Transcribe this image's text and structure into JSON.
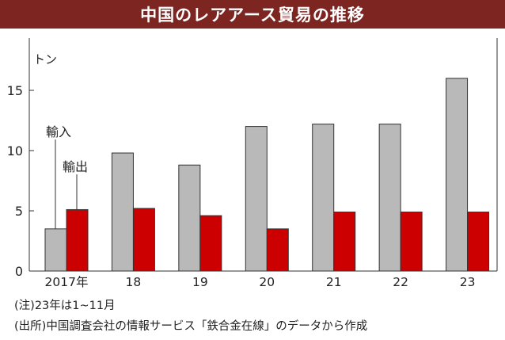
{
  "title": "中国のレアアース貿易の推移",
  "notes": [
    "(注)23年は1~11月",
    "(出所)中国調査会社の情報サービス「鉄合金在線」のデータから作成"
  ],
  "chart_data": {
    "type": "bar",
    "ylabel": "トン",
    "categories": [
      "2017年",
      "18",
      "19",
      "20",
      "21",
      "22",
      "23"
    ],
    "series": [
      {
        "name": "輸入",
        "color": "#b9b9b9",
        "values": [
          3.5,
          9.8,
          8.8,
          12.0,
          12.2,
          12.2,
          16.0
        ]
      },
      {
        "name": "輸出",
        "color": "#cc0000",
        "values": [
          5.1,
          5.2,
          4.6,
          3.5,
          4.9,
          4.9,
          4.9
        ]
      }
    ],
    "ylim": [
      0,
      19
    ],
    "yticks": [
      0,
      5,
      10,
      15
    ],
    "grid": false,
    "legend": "annotated"
  }
}
